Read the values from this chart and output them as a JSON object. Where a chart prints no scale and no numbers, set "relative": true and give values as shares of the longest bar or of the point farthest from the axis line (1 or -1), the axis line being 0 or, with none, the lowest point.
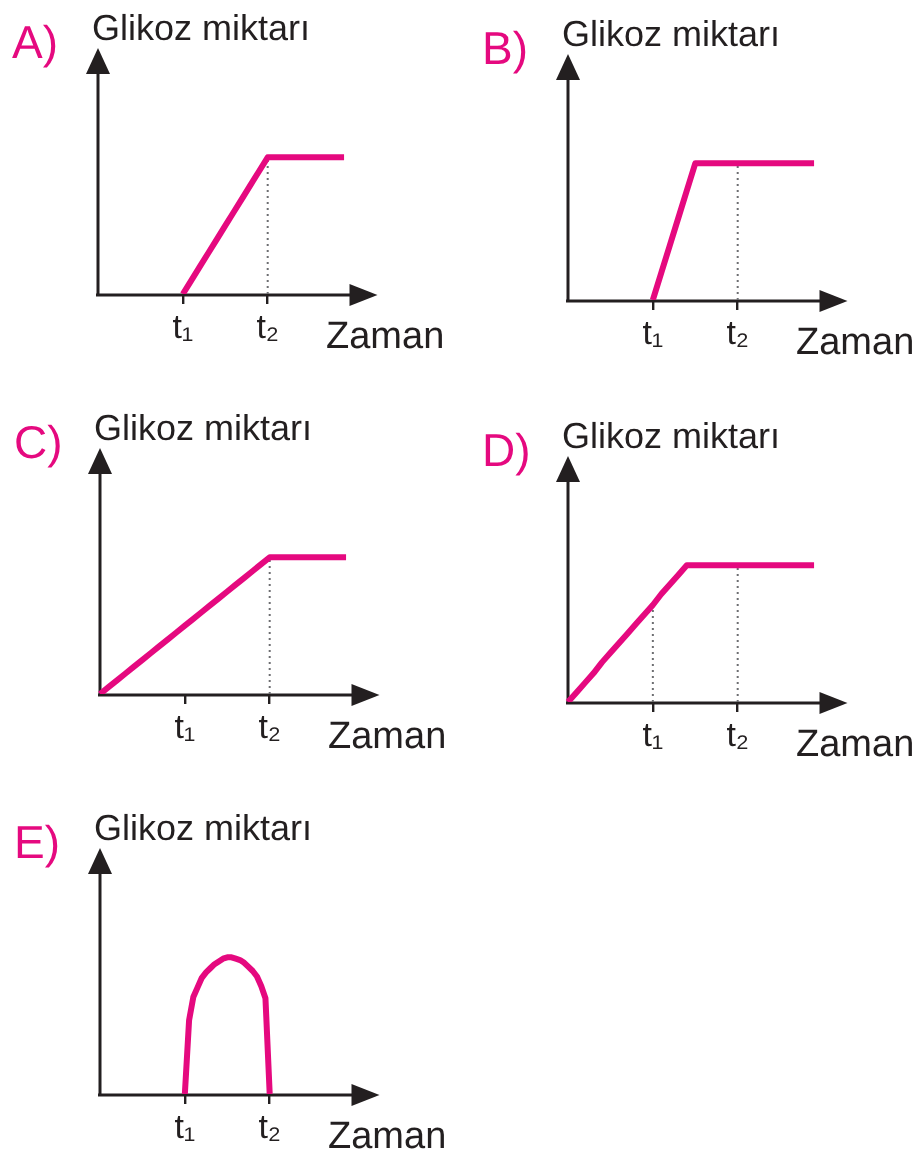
{
  "chart_data": [
    {
      "type": "line",
      "title": "A)",
      "ylabel": "Glikoz miktarı",
      "xlabel": "Zaman",
      "relative": true,
      "tick_labels": "x",
      "marker": "none",
      "categories": [
        null,
        null,
        null,
        null,
        null,
        null,
        null,
        null,
        null,
        null,
        "t₁",
        null,
        null,
        null,
        null,
        null,
        null,
        null,
        null,
        null,
        "t₂",
        null,
        null,
        null,
        null,
        null,
        null,
        null,
        null,
        null,
        null,
        null,
        null,
        null
      ],
      "series": [
        {
          "color": "#e5097f",
          "values": [
            null,
            null,
            null,
            null,
            null,
            null,
            null,
            null,
            null,
            null,
            0,
            0.1,
            0.2,
            0.3,
            0.4,
            0.5,
            0.6,
            0.7,
            0.8,
            0.9,
            1,
            1,
            1,
            1,
            1,
            1,
            1,
            1,
            1,
            1,
            null,
            null,
            null,
            null
          ]
        }
      ],
      "ref_lines": [
        {
          "axis": "x",
          "value": "t₂",
          "line_style": "dotted",
          "color": "#6d6e71"
        }
      ]
    },
    {
      "type": "line",
      "title": "B)",
      "ylabel": "Glikoz miktarı",
      "xlabel": "Zaman",
      "relative": true,
      "tick_labels": "x",
      "marker": "none",
      "categories": [
        null,
        null,
        null,
        null,
        null,
        null,
        null,
        null,
        null,
        null,
        "t₁",
        null,
        null,
        null,
        null,
        null,
        null,
        null,
        null,
        null,
        "t₂",
        null,
        null,
        null,
        null,
        null,
        null,
        null,
        null,
        null,
        null,
        null,
        null,
        null
      ],
      "series": [
        {
          "color": "#e5097f",
          "values": [
            null,
            null,
            null,
            null,
            null,
            null,
            null,
            null,
            null,
            null,
            0,
            0.2,
            0.4,
            0.6,
            0.8,
            1,
            1,
            1,
            1,
            1,
            1,
            1,
            1,
            1,
            1,
            1,
            1,
            1,
            1,
            1,
            null,
            null,
            null,
            null
          ]
        }
      ],
      "ref_lines": [
        {
          "axis": "x",
          "value": "t₂",
          "line_style": "dotted",
          "color": "#6d6e71"
        }
      ]
    },
    {
      "type": "line",
      "title": "C)",
      "ylabel": "Glikoz miktarı",
      "xlabel": "Zaman",
      "relative": true,
      "tick_labels": "x",
      "marker": "none",
      "categories": [
        null,
        null,
        null,
        null,
        null,
        null,
        null,
        null,
        null,
        null,
        "t₁",
        null,
        null,
        null,
        null,
        null,
        null,
        null,
        null,
        null,
        "t₂",
        null,
        null,
        null,
        null,
        null,
        null,
        null,
        null,
        null,
        null,
        null,
        null,
        null
      ],
      "series": [
        {
          "color": "#e5097f",
          "values": [
            0,
            0.05,
            0.1,
            0.15,
            0.2,
            0.25,
            0.3,
            0.35,
            0.4,
            0.45,
            0.5,
            0.55,
            0.6,
            0.65,
            0.7,
            0.75,
            0.8,
            0.85,
            0.9,
            0.95,
            1,
            1,
            1,
            1,
            1,
            1,
            1,
            1,
            1,
            1,
            null,
            null,
            null,
            null
          ]
        }
      ],
      "ref_lines": [
        {
          "axis": "x",
          "value": "t₂",
          "line_style": "dotted",
          "color": "#6d6e71"
        }
      ]
    },
    {
      "type": "line",
      "title": "D)",
      "ylabel": "Glikoz miktarı",
      "xlabel": "Zaman",
      "relative": true,
      "tick_labels": "x",
      "marker": "none",
      "categories": [
        null,
        null,
        null,
        null,
        null,
        null,
        null,
        null,
        null,
        null,
        "t₁",
        null,
        null,
        null,
        null,
        null,
        null,
        null,
        null,
        null,
        "t₂",
        null,
        null,
        null,
        null,
        null,
        null,
        null,
        null,
        null,
        null,
        null,
        null,
        null
      ],
      "series": [
        {
          "color": "#e5097f",
          "values": [
            0,
            0.07,
            0.14,
            0.21,
            0.29,
            0.36,
            0.43,
            0.5,
            0.57,
            0.64,
            0.71,
            0.79,
            0.86,
            0.93,
            1,
            1,
            1,
            1,
            1,
            1,
            1,
            1,
            1,
            1,
            1,
            1,
            1,
            1,
            1,
            1,
            null,
            null,
            null,
            null
          ]
        }
      ],
      "ref_lines": [
        {
          "axis": "x",
          "value": "t₁",
          "line_style": "dotted",
          "color": "#6d6e71"
        },
        {
          "axis": "x",
          "value": "t₂",
          "line_style": "dotted",
          "color": "#6d6e71"
        }
      ]
    },
    {
      "type": "line",
      "title": "E)",
      "ylabel": "Glikoz miktarı",
      "xlabel": "Zaman",
      "relative": true,
      "tick_labels": "x",
      "marker": "none",
      "categories": [
        null,
        null,
        null,
        null,
        null,
        null,
        null,
        null,
        null,
        null,
        null,
        null,
        null,
        null,
        null,
        null,
        null,
        null,
        null,
        null,
        "t₁",
        null,
        null,
        null,
        null,
        null,
        null,
        null,
        null,
        null,
        null,
        null,
        null,
        null,
        null,
        null,
        null,
        null,
        null,
        null,
        "t₂",
        null,
        null,
        null,
        null,
        null,
        null,
        null,
        null,
        null,
        null,
        null,
        null,
        null,
        null,
        null,
        null,
        null,
        null,
        null,
        null,
        null,
        null,
        null,
        null,
        null,
        null
      ],
      "series": [
        {
          "color": "#e5097f",
          "values": [
            null,
            null,
            null,
            null,
            null,
            null,
            null,
            null,
            null,
            null,
            null,
            null,
            null,
            null,
            null,
            null,
            null,
            null,
            null,
            null,
            0,
            0.54,
            0.71,
            0.78,
            0.85,
            0.89,
            0.92,
            0.95,
            0.97,
            0.99,
            1,
            1,
            0.99,
            0.98,
            0.96,
            0.93,
            0.9,
            0.86,
            0.79,
            0.7,
            0,
            null,
            null,
            null,
            null,
            null,
            null,
            null,
            null,
            null,
            null,
            null,
            null,
            null,
            null,
            null,
            null,
            null,
            null,
            null,
            null,
            null,
            null,
            null,
            null,
            null,
            null
          ]
        }
      ]
    }
  ]
}
